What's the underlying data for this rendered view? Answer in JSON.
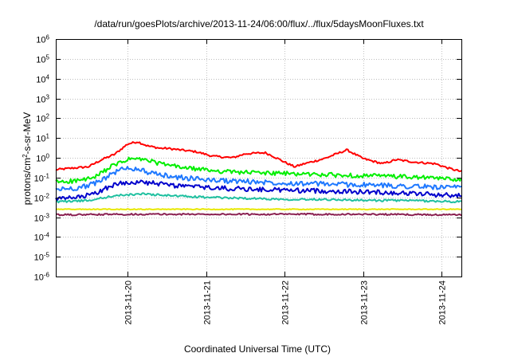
{
  "chart_data": {
    "type": "line",
    "title": "/data/run/goesPlots/archive/2013-11-24/06:00/flux/../flux/5daysMoonFluxes.txt",
    "xlabel": "Coordinated Universal Time (UTC)",
    "ylabel": {
      "prefix": "protons/cm",
      "sup": "2",
      "suffix": "-s-sr-MeV"
    },
    "x_range": [
      "2013-11-19T02:00",
      "2013-11-24T06:00"
    ],
    "x_ticks": [
      "2013-11-20",
      "2013-11-21",
      "2013-11-22",
      "2013-11-23",
      "2013-11-24"
    ],
    "y_scale": "log",
    "ylim": [
      1e-06,
      1000000.0
    ],
    "y_ticks": [
      {
        "base": "10",
        "exp": "-6"
      },
      {
        "base": "10",
        "exp": "-5"
      },
      {
        "base": "10",
        "exp": "-4"
      },
      {
        "base": "10",
        "exp": "-3"
      },
      {
        "base": "10",
        "exp": "-2"
      },
      {
        "base": "10",
        "exp": "-1"
      },
      {
        "base": "10",
        "exp": "0"
      },
      {
        "base": "10",
        "exp": "1"
      },
      {
        "base": "10",
        "exp": "2"
      },
      {
        "base": "10",
        "exp": "3"
      },
      {
        "base": "10",
        "exp": "4"
      },
      {
        "base": "10",
        "exp": "5"
      },
      {
        "base": "10",
        "exp": "6"
      }
    ],
    "grid": true,
    "legend": "none",
    "series": [
      {
        "color": "#ff0000",
        "noise": 0.05,
        "x": [
          "2013-11-19T02:00",
          "2013-11-19T07:00",
          "2013-11-19T12:00",
          "2013-11-19T16:00",
          "2013-11-19T20:00",
          "2013-11-20T00:00",
          "2013-11-20T03:00",
          "2013-11-20T06:00",
          "2013-11-20T10:00",
          "2013-11-20T12:00",
          "2013-11-20T16:00",
          "2013-11-20T21:00",
          "2013-11-21T02:00",
          "2013-11-21T08:00",
          "2013-11-21T12:00",
          "2013-11-21T18:00",
          "2013-11-21T20:00",
          "2013-11-22T00:00",
          "2013-11-22T03:00",
          "2013-11-22T06:00",
          "2013-11-22T12:00",
          "2013-11-22T19:00",
          "2013-11-23T00:00",
          "2013-11-23T06:00",
          "2013-11-23T10:00",
          "2013-11-23T16:00",
          "2013-11-23T22:00",
          "2013-11-24T02:00",
          "2013-11-24T06:00"
        ],
        "y": [
          0.25,
          0.3,
          0.35,
          0.8,
          1.5,
          5.0,
          6.5,
          4.0,
          3.0,
          3.0,
          2.5,
          2.0,
          1.2,
          1.0,
          1.6,
          1.8,
          1.3,
          0.6,
          0.35,
          0.5,
          0.9,
          2.5,
          0.9,
          0.5,
          0.8,
          0.6,
          0.5,
          0.3,
          0.2
        ]
      },
      {
        "color": "#00ee00",
        "noise": 0.11,
        "x": [
          "2013-11-19T02:00",
          "2013-11-19T09:00",
          "2013-11-19T14:00",
          "2013-11-19T18:00",
          "2013-11-19T22:00",
          "2013-11-20T01:00",
          "2013-11-20T05:00",
          "2013-11-20T10:00",
          "2013-11-20T18:00",
          "2013-11-21T06:00",
          "2013-11-21T18:00",
          "2013-11-22T06:00",
          "2013-11-22T18:00",
          "2013-11-23T06:00",
          "2013-11-23T18:00",
          "2013-11-24T06:00"
        ],
        "y": [
          0.06,
          0.07,
          0.1,
          0.3,
          0.6,
          0.9,
          0.8,
          0.5,
          0.3,
          0.2,
          0.17,
          0.15,
          0.13,
          0.12,
          0.1,
          0.08
        ]
      },
      {
        "color": "#1e78ff",
        "noise": 0.13,
        "x": [
          "2013-11-19T02:00",
          "2013-11-19T09:00",
          "2013-11-19T14:00",
          "2013-11-19T19:00",
          "2013-11-19T23:00",
          "2013-11-20T03:00",
          "2013-11-20T08:00",
          "2013-11-20T16:00",
          "2013-11-21T04:00",
          "2013-11-21T16:00",
          "2013-11-22T06:00",
          "2013-11-22T18:00",
          "2013-11-23T06:00",
          "2013-11-23T18:00",
          "2013-11-24T06:00"
        ],
        "y": [
          0.025,
          0.03,
          0.05,
          0.15,
          0.3,
          0.28,
          0.15,
          0.1,
          0.07,
          0.06,
          0.05,
          0.045,
          0.04,
          0.035,
          0.03
        ]
      },
      {
        "color": "#0000cc",
        "noise": 0.12,
        "x": [
          "2013-11-19T02:00",
          "2013-11-19T09:00",
          "2013-11-19T14:00",
          "2013-11-19T19:00",
          "2013-11-20T00:00",
          "2013-11-20T06:00",
          "2013-11-20T14:00",
          "2013-11-21T02:00",
          "2013-11-21T16:00",
          "2013-11-22T06:00",
          "2013-11-22T18:00",
          "2013-11-23T06:00",
          "2013-11-23T18:00",
          "2013-11-24T06:00"
        ],
        "y": [
          0.008,
          0.01,
          0.015,
          0.04,
          0.06,
          0.055,
          0.04,
          0.03,
          0.025,
          0.022,
          0.02,
          0.018,
          0.015,
          0.012
        ]
      },
      {
        "color": "#20c0a0",
        "noise": 0.05,
        "x": [
          "2013-11-19T02:00",
          "2013-11-19T12:00",
          "2013-11-19T20:00",
          "2013-11-20T04:00",
          "2013-11-20T14:00",
          "2013-11-21T00:00",
          "2013-11-21T12:00",
          "2013-11-22T00:00",
          "2013-11-22T12:00",
          "2013-11-23T00:00",
          "2013-11-23T12:00",
          "2013-11-24T06:00"
        ],
        "y": [
          0.006,
          0.007,
          0.012,
          0.015,
          0.012,
          0.01,
          0.009,
          0.008,
          0.008,
          0.007,
          0.007,
          0.006
        ]
      },
      {
        "color": "#e8e800",
        "noise": 0.02,
        "x": [
          "2013-11-19T02:00",
          "2013-11-24T06:00"
        ],
        "y": [
          0.0025,
          0.0025
        ]
      },
      {
        "color": "#8b2252",
        "noise": 0.04,
        "x": [
          "2013-11-19T02:00",
          "2013-11-20T00:00",
          "2013-11-21T00:00",
          "2013-11-22T00:00",
          "2013-11-23T00:00",
          "2013-11-24T06:00"
        ],
        "y": [
          0.0013,
          0.0014,
          0.0014,
          0.0014,
          0.0014,
          0.0013
        ]
      }
    ]
  }
}
